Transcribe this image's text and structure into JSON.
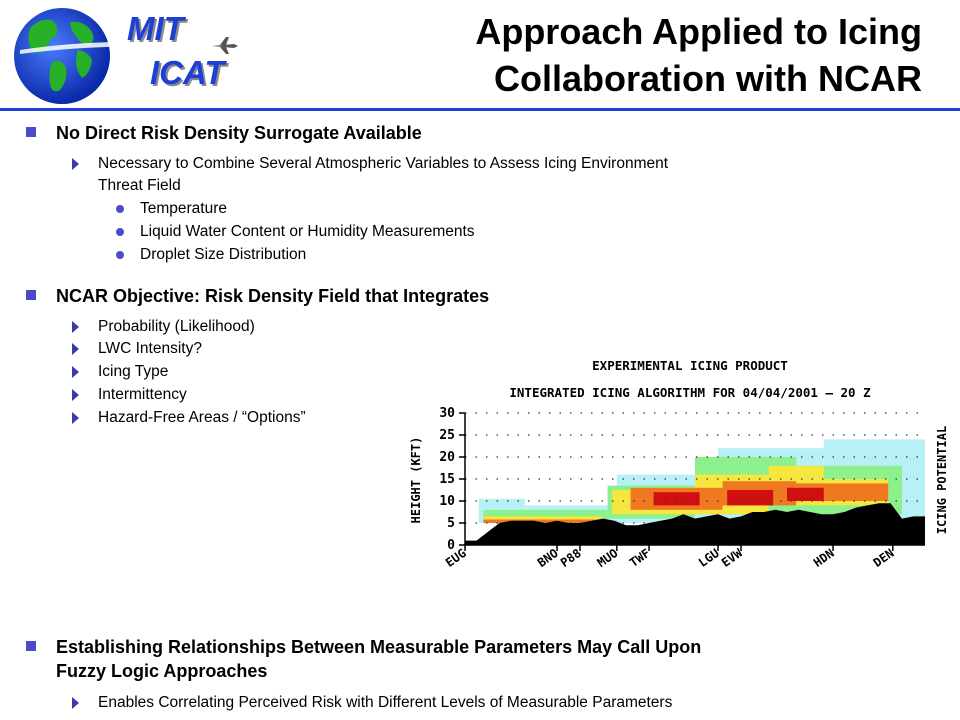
{
  "logo": {
    "line1": "MIT",
    "line2": "ICAT"
  },
  "title": {
    "line1": "Approach Applied to Icing",
    "line2": "Collaboration with NCAR"
  },
  "sections": [
    {
      "heading": "No Direct Risk Density Surrogate Available",
      "sub": [
        {
          "text_line1": "Necessary to Combine Several Atmospheric Variables to Assess Icing Environment",
          "text_line2": "Threat Field",
          "items": [
            "Temperature",
            "Liquid Water Content or Humidity Measurements",
            "Droplet Size Distribution"
          ]
        }
      ]
    },
    {
      "heading": "NCAR Objective:  Risk Density Field that Integrates",
      "sub": [
        "Probability (Likelihood)",
        "LWC Intensity?",
        "Icing Type",
        "Intermittency",
        "Hazard-Free Areas / “Options”"
      ]
    },
    {
      "heading_line1": "Establishing Relationships Between Measurable Parameters May Call Upon",
      "heading_line2": "Fuzzy Logic Approaches",
      "sub": [
        "Enables Correlating Perceived Risk with Different Levels of Measurable Parameters"
      ]
    }
  ],
  "chart_data": {
    "type": "heatmap",
    "title": "EXPERIMENTAL ICING PRODUCT",
    "subtitle": "INTEGRATED ICING ALGORITHM FOR 04/04/2001 – 20 Z",
    "ylabel": "HEIGHT (KFT)",
    "right_label": "ICING POTENTIAL",
    "ylim": [
      0,
      30
    ],
    "yticks": [
      "0",
      "5",
      "10",
      "15",
      "20",
      "25",
      "30"
    ],
    "stations": [
      "EUG",
      "BNO",
      "P88",
      "MUO",
      "TWF",
      "LGU",
      "EVW",
      "HDN",
      "DEN"
    ],
    "station_positions": [
      0,
      0.2,
      0.25,
      0.33,
      0.4,
      0.55,
      0.6,
      0.8,
      0.93
    ],
    "grid": true,
    "terrain_kft": [
      1,
      1,
      3,
      5,
      5.5,
      5.5,
      5.5,
      5,
      5.5,
      5,
      5,
      5.5,
      6,
      5.5,
      4.5,
      4.5,
      5,
      5.5,
      6,
      7,
      6,
      6.5,
      7,
      6,
      6.5,
      7.5,
      7.5,
      8,
      7.5,
      8,
      7.5,
      7,
      7,
      7.5,
      8.5,
      9,
      9.5,
      9.5,
      6,
      6.5,
      6.5
    ],
    "colors": {
      "light": "#b8f0f8",
      "green": "#8cf08c",
      "yellow": "#f5e640",
      "orange": "#f07820",
      "red": "#d01010",
      "terrain": "#000000"
    }
  }
}
